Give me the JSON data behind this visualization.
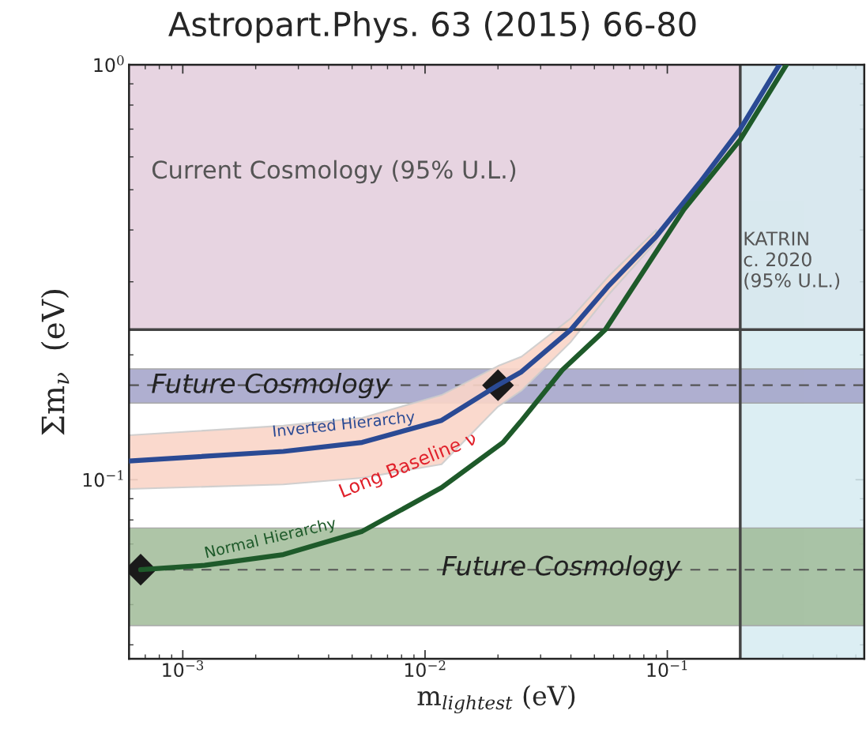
{
  "chart_data": {
    "type": "line",
    "title": "Astropart.Phys. 63 (2015) 66-80",
    "xlabel": "m$_{lightest}$ (eV)",
    "ylabel": "Σm$_{ν}$  (eV)",
    "log": "xy",
    "xlim": [
      0.0006,
      0.65
    ],
    "ylim": [
      0.037,
      1
    ],
    "xticks": [
      {
        "value": 0.001,
        "label": "10$^{−3}$"
      },
      {
        "value": 0.01,
        "label": "10$^{−2}$"
      },
      {
        "value": 0.1,
        "label": "10$^{−1}$"
      }
    ],
    "yticks": [
      {
        "value": 0.1,
        "label": "10$^{−1}$"
      },
      {
        "value": 1,
        "label": "10$^{0}$"
      }
    ],
    "grid": false,
    "legend": false,
    "series": [
      {
        "name": "Inverted Hierarchy",
        "color": "#2a4a94",
        "x": [
          0.0006,
          0.0026,
          0.0055,
          0.0117,
          0.02,
          0.025,
          0.04,
          0.0574,
          0.09,
          0.136,
          0.2,
          0.29
        ],
        "values": [
          0.111,
          0.117,
          0.123,
          0.139,
          0.169,
          0.182,
          0.23,
          0.294,
          0.386,
          0.52,
          0.7,
          1.0
        ],
        "lower": [
          0.095,
          0.0974,
          0.101,
          0.109,
          0.15,
          0.164,
          0.215,
          0.28,
          0.375,
          null,
          null,
          null
        ],
        "upper": [
          0.128,
          0.135,
          0.141,
          0.16,
          0.188,
          0.198,
          0.245,
          0.31,
          0.4,
          null,
          null,
          null
        ]
      },
      {
        "name": "Normal Hierarchy",
        "color": "#1e5a2a",
        "x": [
          0.00067,
          0.00123,
          0.0026,
          0.0055,
          0.0117,
          0.021,
          0.0248,
          0.0369,
          0.0555,
          0.117,
          0.2,
          0.31
        ],
        "values": [
          0.0607,
          0.0622,
          0.066,
          0.0751,
          0.0957,
          0.123,
          0.138,
          0.184,
          0.23,
          0.448,
          0.66,
          1.0
        ]
      },
      {
        "type": "scatter",
        "color": "#1a1a1a",
        "marker": "diamond",
        "x": [
          0.00067,
          0.02
        ],
        "values": [
          0.0607,
          0.169
        ]
      }
    ],
    "bands": [
      {
        "axis": "y",
        "from": 0.23,
        "to": 1,
        "label": "Current Cosmology (95% U.L.)",
        "color": "#e3cddc"
      },
      {
        "axis": "x",
        "from": 0.2,
        "to": 0.65,
        "label": "KATRIN\nc. 2020\n(95% U.L.)",
        "color": "#d6ecf1"
      },
      {
        "axis": "y",
        "from": 0.153,
        "to": 0.185,
        "label": "Future Cosmology",
        "color": "#a2a2c8"
      },
      {
        "axis": "y",
        "from": 0.0445,
        "to": 0.0765,
        "label": "Future Cosmology",
        "color": "#a0bb98"
      }
    ],
    "ref_lines": [
      {
        "axis": "y",
        "value": 0.23,
        "color": "#444444",
        "line_style": "solid"
      },
      {
        "axis": "x",
        "value": 0.2,
        "color": "#444444",
        "line_style": "solid"
      },
      {
        "axis": "y",
        "value": 0.169,
        "color": "#555555",
        "line_style": "dashed"
      },
      {
        "axis": "y",
        "value": 0.0607,
        "color": "#555555",
        "line_style": "dashed"
      }
    ],
    "annotations": [
      {
        "text": "Long Baseline ν",
        "x": 0.0085,
        "y": 0.108
      }
    ]
  }
}
